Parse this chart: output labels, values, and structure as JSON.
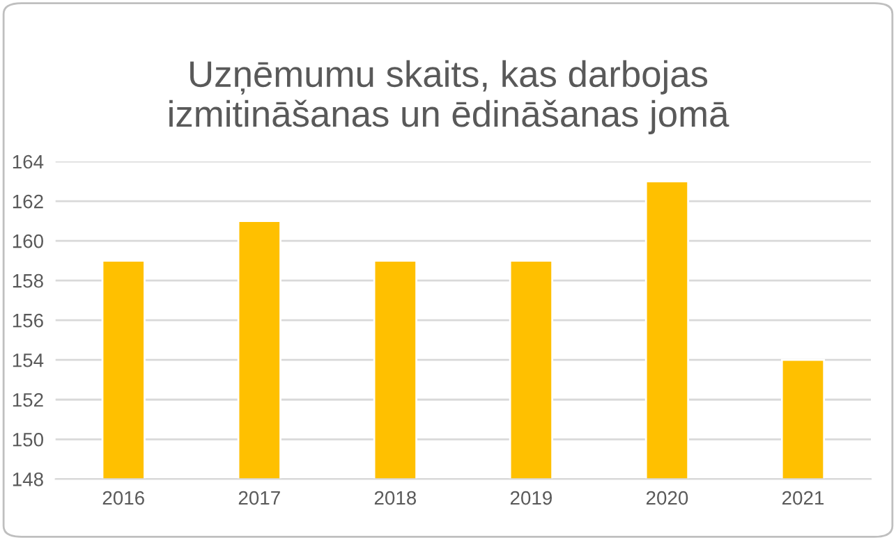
{
  "chart_data": {
    "type": "bar",
    "title": "Uzņēmumu skaits, kas darbojas izmitināšanas un ēdināšanas jomā",
    "categories": [
      "2016",
      "2017",
      "2018",
      "2019",
      "2020",
      "2021"
    ],
    "values": [
      159,
      161,
      159,
      159,
      163,
      154
    ],
    "color": "#ffc000",
    "ylim": [
      148,
      164
    ],
    "yticks": [
      148,
      150,
      152,
      154,
      156,
      158,
      160,
      162,
      164
    ],
    "grid": "y"
  }
}
